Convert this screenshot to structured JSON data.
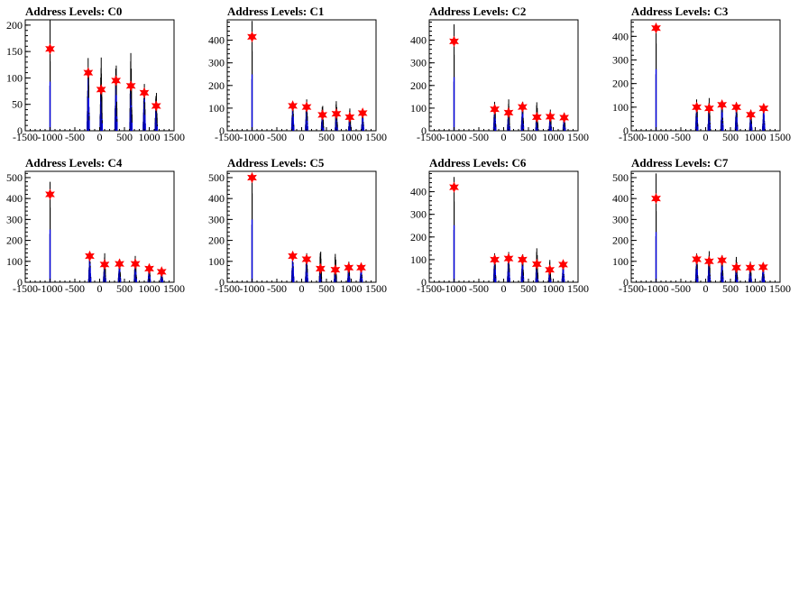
{
  "chart_data": [
    {
      "type": "histogram",
      "title": "Address Levels: C0",
      "xlim": [
        -1500,
        1500
      ],
      "ylim": [
        0,
        210
      ],
      "xticks": [
        -1500,
        -1000,
        -500,
        0,
        500,
        1000,
        1500
      ],
      "yticks": [
        0,
        50,
        100,
        150,
        200
      ],
      "peaks": [
        {
          "x": -1000,
          "y": 155
        },
        {
          "x": -230,
          "y": 110
        },
        {
          "x": 30,
          "y": 78
        },
        {
          "x": 330,
          "y": 95
        },
        {
          "x": 630,
          "y": 85
        },
        {
          "x": 900,
          "y": 72
        },
        {
          "x": 1140,
          "y": 47
        }
      ],
      "maxima": [
        {
          "x": -1000,
          "y": 210
        },
        {
          "x": -230,
          "y": 140
        },
        {
          "x": 30,
          "y": 140
        },
        {
          "x": 330,
          "y": 135
        },
        {
          "x": 630,
          "y": 152
        },
        {
          "x": 900,
          "y": 90
        },
        {
          "x": 1140,
          "y": 78
        }
      ]
    },
    {
      "type": "histogram",
      "title": "Address Levels: C1",
      "xlim": [
        -1500,
        1500
      ],
      "ylim": [
        0,
        490
      ],
      "xticks": [
        -1500,
        -1000,
        -500,
        0,
        500,
        1000,
        1500
      ],
      "yticks": [
        0,
        100,
        200,
        300,
        400
      ],
      "peaks": [
        {
          "x": -1000,
          "y": 415
        },
        {
          "x": -180,
          "y": 110
        },
        {
          "x": 100,
          "y": 105
        },
        {
          "x": 420,
          "y": 70
        },
        {
          "x": 700,
          "y": 75
        },
        {
          "x": 970,
          "y": 60
        },
        {
          "x": 1230,
          "y": 78
        }
      ],
      "maxima": [
        {
          "x": -1000,
          "y": 485
        },
        {
          "x": -180,
          "y": 125
        },
        {
          "x": 100,
          "y": 140
        },
        {
          "x": 420,
          "y": 120
        },
        {
          "x": 700,
          "y": 135
        },
        {
          "x": 970,
          "y": 100
        },
        {
          "x": 1230,
          "y": 90
        }
      ]
    },
    {
      "type": "histogram",
      "title": "Address Levels: C2",
      "xlim": [
        -1500,
        1500
      ],
      "ylim": [
        0,
        490
      ],
      "xticks": [
        -1500,
        -1000,
        -500,
        0,
        500,
        1000,
        1500
      ],
      "yticks": [
        0,
        100,
        200,
        300,
        400
      ],
      "peaks": [
        {
          "x": -1000,
          "y": 395
        },
        {
          "x": -180,
          "y": 95
        },
        {
          "x": 100,
          "y": 80
        },
        {
          "x": 380,
          "y": 105
        },
        {
          "x": 670,
          "y": 60
        },
        {
          "x": 940,
          "y": 62
        },
        {
          "x": 1220,
          "y": 58
        }
      ],
      "maxima": [
        {
          "x": -1000,
          "y": 470
        },
        {
          "x": -180,
          "y": 130
        },
        {
          "x": 100,
          "y": 140
        },
        {
          "x": 380,
          "y": 140
        },
        {
          "x": 670,
          "y": 130
        },
        {
          "x": 940,
          "y": 95
        },
        {
          "x": 1220,
          "y": 85
        }
      ]
    },
    {
      "type": "histogram",
      "title": "Address Levels: C3",
      "xlim": [
        -1500,
        1500
      ],
      "ylim": [
        0,
        470
      ],
      "xticks": [
        -1500,
        -1000,
        -500,
        0,
        500,
        1000,
        1500
      ],
      "yticks": [
        0,
        100,
        200,
        300,
        400
      ],
      "peaks": [
        {
          "x": -1000,
          "y": 435
        },
        {
          "x": -180,
          "y": 100
        },
        {
          "x": 70,
          "y": 95
        },
        {
          "x": 330,
          "y": 110
        },
        {
          "x": 620,
          "y": 100
        },
        {
          "x": 910,
          "y": 68
        },
        {
          "x": 1170,
          "y": 95
        }
      ],
      "maxima": [
        {
          "x": -1000,
          "y": 455
        },
        {
          "x": -180,
          "y": 135
        },
        {
          "x": 70,
          "y": 140
        },
        {
          "x": 330,
          "y": 135
        },
        {
          "x": 620,
          "y": 125
        },
        {
          "x": 910,
          "y": 90
        },
        {
          "x": 1170,
          "y": 100
        }
      ]
    },
    {
      "type": "histogram",
      "title": "Address Levels: C4",
      "xlim": [
        -1500,
        1500
      ],
      "ylim": [
        0,
        530
      ],
      "xticks": [
        -1500,
        -1000,
        -500,
        0,
        500,
        1000,
        1500
      ],
      "yticks": [
        0,
        100,
        200,
        300,
        400,
        500
      ],
      "peaks": [
        {
          "x": -1000,
          "y": 420
        },
        {
          "x": -200,
          "y": 125
        },
        {
          "x": 100,
          "y": 85
        },
        {
          "x": 400,
          "y": 88
        },
        {
          "x": 720,
          "y": 88
        },
        {
          "x": 1000,
          "y": 65
        },
        {
          "x": 1250,
          "y": 50
        }
      ],
      "maxima": [
        {
          "x": -1000,
          "y": 480
        },
        {
          "x": -200,
          "y": 130
        },
        {
          "x": 100,
          "y": 140
        },
        {
          "x": 400,
          "y": 120
        },
        {
          "x": 720,
          "y": 130
        },
        {
          "x": 1000,
          "y": 80
        },
        {
          "x": 1250,
          "y": 60
        }
      ]
    },
    {
      "type": "histogram",
      "title": "Address Levels: C5",
      "xlim": [
        -1500,
        1500
      ],
      "ylim": [
        0,
        530
      ],
      "xticks": [
        -1500,
        -1000,
        -500,
        0,
        500,
        1000,
        1500
      ],
      "yticks": [
        0,
        100,
        200,
        300,
        400,
        500
      ],
      "peaks": [
        {
          "x": -1000,
          "y": 500
        },
        {
          "x": -180,
          "y": 125
        },
        {
          "x": 100,
          "y": 110
        },
        {
          "x": 380,
          "y": 65
        },
        {
          "x": 680,
          "y": 60
        },
        {
          "x": 950,
          "y": 70
        },
        {
          "x": 1200,
          "y": 70
        }
      ],
      "maxima": [
        {
          "x": -1000,
          "y": 520
        },
        {
          "x": -180,
          "y": 125
        },
        {
          "x": 100,
          "y": 140
        },
        {
          "x": 380,
          "y": 160
        },
        {
          "x": 680,
          "y": 140
        },
        {
          "x": 950,
          "y": 100
        },
        {
          "x": 1200,
          "y": 85
        }
      ]
    },
    {
      "type": "histogram",
      "title": "Address Levels: C6",
      "xlim": [
        -1500,
        1500
      ],
      "ylim": [
        0,
        490
      ],
      "xticks": [
        -1500,
        -1000,
        -500,
        0,
        500,
        1000,
        1500
      ],
      "yticks": [
        0,
        100,
        200,
        300,
        400
      ],
      "peaks": [
        {
          "x": -1000,
          "y": 420
        },
        {
          "x": -180,
          "y": 100
        },
        {
          "x": 100,
          "y": 105
        },
        {
          "x": 380,
          "y": 100
        },
        {
          "x": 670,
          "y": 80
        },
        {
          "x": 930,
          "y": 55
        },
        {
          "x": 1200,
          "y": 78
        }
      ],
      "maxima": [
        {
          "x": -1000,
          "y": 465
        },
        {
          "x": -180,
          "y": 130
        },
        {
          "x": 100,
          "y": 135
        },
        {
          "x": 380,
          "y": 135
        },
        {
          "x": 670,
          "y": 155
        },
        {
          "x": 930,
          "y": 100
        },
        {
          "x": 1200,
          "y": 85
        }
      ]
    },
    {
      "type": "histogram",
      "title": "Address Levels: C7",
      "xlim": [
        -1500,
        1500
      ],
      "ylim": [
        0,
        530
      ],
      "xticks": [
        -1500,
        -1000,
        -500,
        0,
        500,
        1000,
        1500
      ],
      "yticks": [
        0,
        100,
        200,
        300,
        400,
        500
      ],
      "peaks": [
        {
          "x": -1000,
          "y": 400
        },
        {
          "x": -180,
          "y": 110
        },
        {
          "x": 70,
          "y": 100
        },
        {
          "x": 330,
          "y": 105
        },
        {
          "x": 620,
          "y": 70
        },
        {
          "x": 900,
          "y": 70
        },
        {
          "x": 1160,
          "y": 72
        }
      ],
      "maxima": [
        {
          "x": -1000,
          "y": 520
        },
        {
          "x": -180,
          "y": 140
        },
        {
          "x": 70,
          "y": 150
        },
        {
          "x": 330,
          "y": 140
        },
        {
          "x": 620,
          "y": 125
        },
        {
          "x": 900,
          "y": 100
        },
        {
          "x": 1160,
          "y": 90
        }
      ]
    }
  ],
  "colors": {
    "fill": "#0000ff",
    "outline": "#000000",
    "marker": "#ff0000",
    "background": "#ffffff"
  }
}
